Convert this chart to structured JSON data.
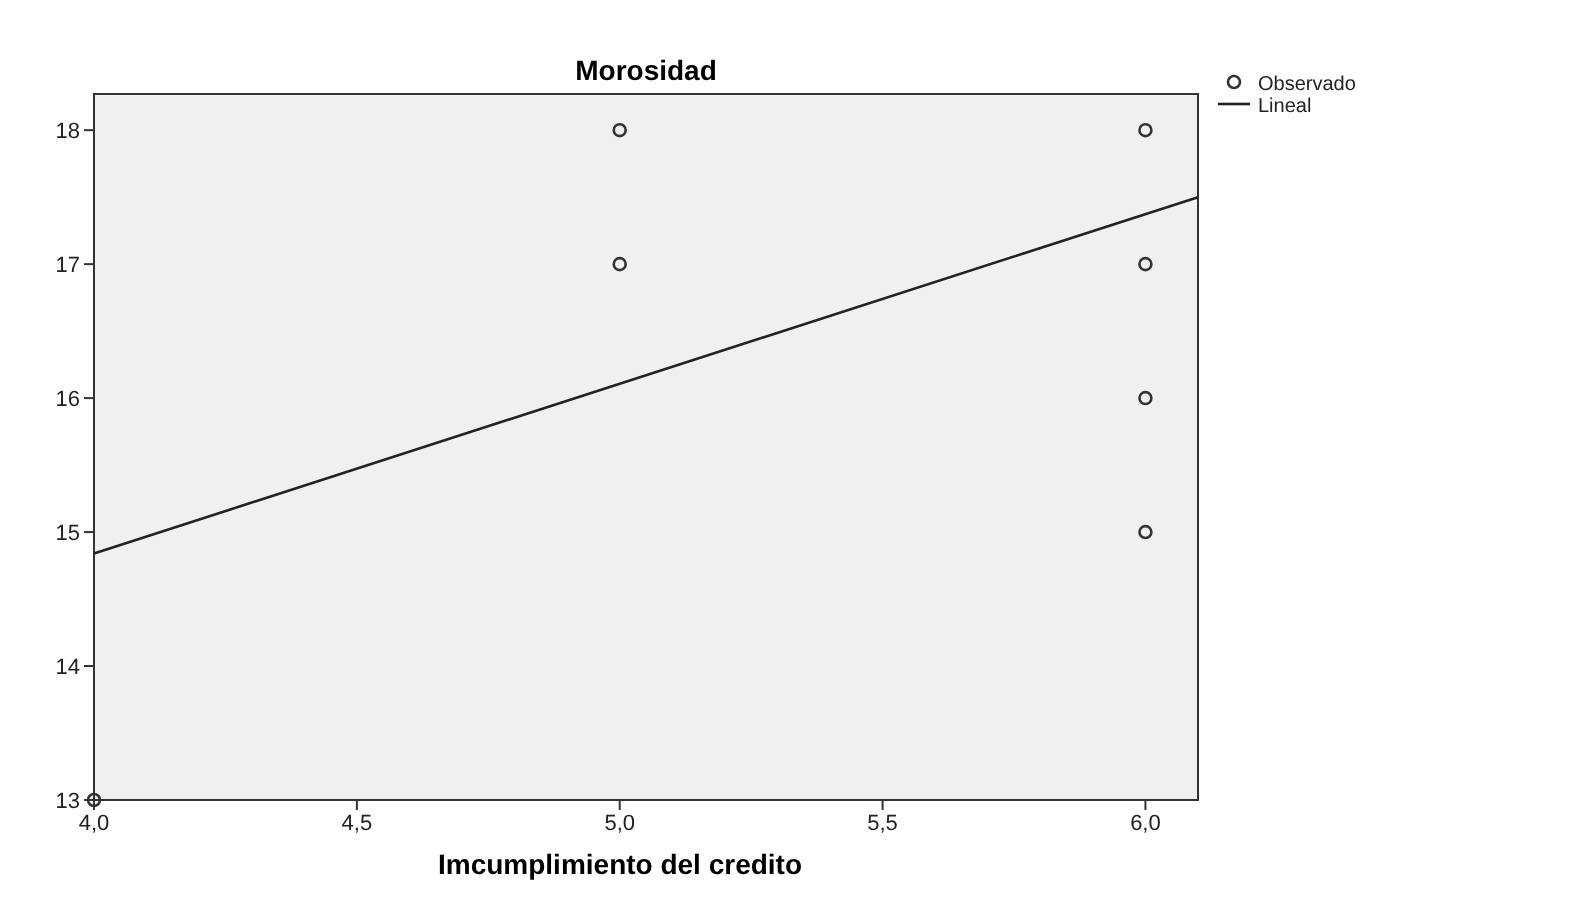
{
  "chart_data": {
    "type": "scatter",
    "title": "Morosidad",
    "xlabel": "Imcumplimiento del credito",
    "xlim": [
      4.0,
      6.1
    ],
    "xticks": [
      {
        "value": 4,
        "label": "4,0"
      },
      {
        "value": 4.5,
        "label": "4,5"
      },
      {
        "value": 5,
        "label": "5,0"
      },
      {
        "value": 5.5,
        "label": "5,5"
      },
      {
        "value": 6,
        "label": "6,0"
      }
    ],
    "ylim": [
      13,
      18.27
    ],
    "yticks": [
      13,
      14,
      15,
      16,
      17,
      18
    ],
    "legend": "top right",
    "grid": false,
    "series": [
      {
        "name": "Observado",
        "marker": "circle",
        "color": "#333333",
        "x": [
          4,
          5,
          5,
          6,
          6,
          6,
          6
        ],
        "values": [
          13,
          18,
          17,
          18,
          17,
          16,
          15
        ]
      },
      {
        "name": "Lineal",
        "type": "line",
        "marker": "none",
        "color": "#222222",
        "x": [
          4,
          6.1
        ],
        "values": [
          14.84,
          17.5
        ]
      }
    ]
  }
}
